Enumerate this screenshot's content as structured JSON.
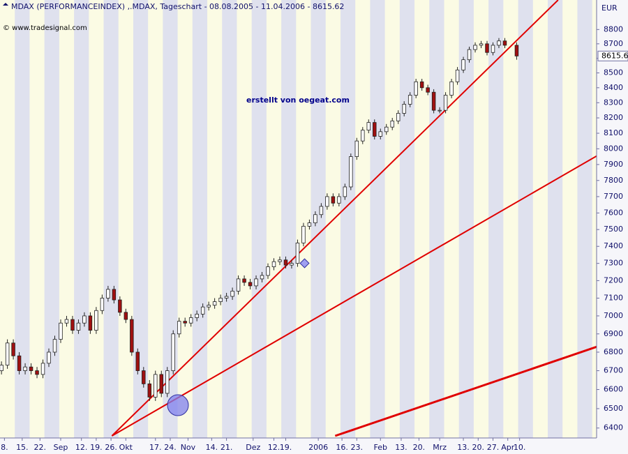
{
  "chart_data": {
    "type": "candlestick",
    "title": "MDAX (PERFORMANCEINDEX) ,.MDAX, Tageschart - 08.08.2005 - 11.04.2006 - 8615.62",
    "source": "© www.tradesignal.com",
    "annotation": "erstellt von oegeat.com",
    "y_unit": "EUR",
    "log_scale": true,
    "up_color": "#ffffff",
    "down_color": "#a01010",
    "x": [
      0,
      2,
      4,
      6,
      8,
      10,
      12,
      14,
      16,
      18,
      20,
      22,
      24,
      26,
      28,
      30,
      32,
      34,
      36,
      38,
      40,
      42,
      44,
      46,
      48,
      50,
      52,
      54,
      56,
      58,
      60,
      62,
      64,
      66,
      68,
      70,
      72,
      74,
      76,
      78,
      80,
      82,
      84,
      86,
      88,
      90,
      92,
      94,
      96,
      98,
      100,
      102,
      104,
      106,
      108,
      110,
      112,
      114,
      116,
      118,
      120,
      122,
      124,
      126,
      128,
      130,
      132,
      134,
      136,
      138,
      140,
      142,
      144,
      146,
      148,
      150,
      152,
      154,
      156,
      158,
      160,
      162,
      164,
      166,
      168,
      170,
      174
    ],
    "open": [
      6700,
      6730,
      6850,
      6780,
      6700,
      6720,
      6700,
      6680,
      6740,
      6800,
      6870,
      6960,
      6980,
      6920,
      6960,
      7000,
      6920,
      7030,
      7100,
      7150,
      7090,
      7020,
      6980,
      6800,
      6700,
      6630,
      6560,
      6680,
      6580,
      6700,
      6900,
      6970,
      6960,
      6990,
      7010,
      7050,
      7060,
      7080,
      7100,
      7110,
      7140,
      7210,
      7190,
      7170,
      7210,
      7230,
      7280,
      7310,
      7320,
      7290,
      7300,
      7420,
      7520,
      7540,
      7590,
      7640,
      7700,
      7660,
      7700,
      7760,
      7950,
      8050,
      8120,
      8170,
      8080,
      8110,
      8140,
      8180,
      8230,
      8290,
      8350,
      8440,
      8400,
      8370,
      8250,
      8250,
      8350,
      8440,
      8520,
      8590,
      8660,
      8690,
      8700,
      8640,
      8690,
      8720,
      8690
    ],
    "high": [
      6750,
      6870,
      6870,
      6800,
      6740,
      6740,
      6720,
      6760,
      6820,
      6890,
      6980,
      7000,
      7000,
      6980,
      7020,
      7020,
      7050,
      7120,
      7170,
      7170,
      7110,
      7040,
      7000,
      6820,
      6720,
      6650,
      6700,
      6700,
      6720,
      6920,
      6990,
      6990,
      7010,
      7030,
      7070,
      7080,
      7100,
      7120,
      7130,
      7160,
      7230,
      7230,
      7210,
      7230,
      7250,
      7300,
      7330,
      7340,
      7340,
      7320,
      7440,
      7540,
      7560,
      7610,
      7660,
      7720,
      7720,
      7720,
      7780,
      7970,
      8070,
      8140,
      8190,
      8190,
      8130,
      8160,
      8200,
      8250,
      8310,
      8370,
      8460,
      8460,
      8420,
      8390,
      8270,
      8370,
      8460,
      8540,
      8610,
      8680,
      8710,
      8720,
      8720,
      8710,
      8740,
      8740,
      8710
    ],
    "low": [
      6680,
      6710,
      6760,
      6680,
      6680,
      6680,
      6660,
      6660,
      6720,
      6780,
      6850,
      6940,
      6900,
      6900,
      6940,
      6900,
      6900,
      7010,
      7080,
      7070,
      7000,
      6960,
      6780,
      6680,
      6610,
      6540,
      6540,
      6560,
      6560,
      6680,
      6880,
      6940,
      6940,
      6970,
      6990,
      7030,
      7040,
      7060,
      7080,
      7090,
      7120,
      7170,
      7150,
      7150,
      7190,
      7210,
      7260,
      7290,
      7270,
      7270,
      7280,
      7400,
      7500,
      7520,
      7570,
      7620,
      7640,
      7640,
      7680,
      7740,
      7930,
      8030,
      8100,
      8060,
      8060,
      8090,
      8120,
      8160,
      8210,
      8270,
      8330,
      8380,
      8350,
      8230,
      8230,
      8230,
      8330,
      8420,
      8500,
      8570,
      8640,
      8670,
      8620,
      8620,
      8670,
      8670,
      8590
    ],
    "close": [
      6730,
      6850,
      6780,
      6700,
      6720,
      6700,
      6680,
      6740,
      6800,
      6870,
      6960,
      6980,
      6920,
      6960,
      7000,
      6920,
      7030,
      7100,
      7150,
      7090,
      7020,
      6980,
      6800,
      6700,
      6630,
      6560,
      6680,
      6580,
      6700,
      6900,
      6970,
      6960,
      6990,
      7010,
      7050,
      7060,
      7080,
      7100,
      7110,
      7140,
      7210,
      7190,
      7170,
      7210,
      7230,
      7280,
      7310,
      7320,
      7290,
      7300,
      7420,
      7520,
      7540,
      7590,
      7640,
      7700,
      7660,
      7700,
      7760,
      7950,
      8050,
      8120,
      8170,
      8080,
      8110,
      8140,
      8180,
      8230,
      8290,
      8350,
      8440,
      8400,
      8370,
      8250,
      8250,
      8350,
      8440,
      8520,
      8590,
      8660,
      8690,
      8700,
      8640,
      8690,
      8720,
      8690,
      8615.6
    ],
    "last_price": 8615.6,
    "trendlines": [
      {
        "color": "#e00000",
        "x": [
          37.3,
          188
        ],
        "y": [
          6360,
          9010
        ]
      },
      {
        "color": "#e00000",
        "x": [
          37.3,
          201
        ],
        "y": [
          6360,
          7954
        ]
      },
      {
        "color": "#e00000",
        "x": [
          112.7,
          201
        ],
        "y": [
          6360,
          6829
        ]
      }
    ],
    "xlim": [
      -0.5,
      201
    ],
    "xticks": [
      {
        "value": 1,
        "label": "8."
      },
      {
        "value": 7,
        "label": "15."
      },
      {
        "value": 13,
        "label": "22."
      },
      {
        "value": 20,
        "label": "Sep"
      },
      {
        "value": 27,
        "label": "12."
      },
      {
        "value": 32,
        "label": "19."
      },
      {
        "value": 37,
        "label": "26."
      },
      {
        "value": 42,
        "label": "Okt"
      },
      {
        "value": 52,
        "label": "17."
      },
      {
        "value": 57,
        "label": "24."
      },
      {
        "value": 63,
        "label": "Nov"
      },
      {
        "value": 71,
        "label": "14."
      },
      {
        "value": 76,
        "label": "21."
      },
      {
        "value": 85,
        "label": "Dez"
      },
      {
        "value": 92,
        "label": "12."
      },
      {
        "value": 96,
        "label": "19."
      },
      {
        "value": 107,
        "label": "2006"
      },
      {
        "value": 115,
        "label": "16."
      },
      {
        "value": 120,
        "label": "23."
      },
      {
        "value": 128,
        "label": "Feb"
      },
      {
        "value": 135,
        "label": "13."
      },
      {
        "value": 141,
        "label": "20."
      },
      {
        "value": 148,
        "label": "Mrz"
      },
      {
        "value": 156,
        "label": "13."
      },
      {
        "value": 161,
        "label": "20."
      },
      {
        "value": 166,
        "label": "27."
      },
      {
        "value": 171,
        "label": "Apr"
      },
      {
        "value": 175,
        "label": "10."
      }
    ],
    "ylim": [
      6360,
      9010
    ],
    "yticks": [
      6400,
      6500,
      6600,
      6700,
      6800,
      6900,
      7000,
      7100,
      7200,
      7300,
      7400,
      7500,
      7600,
      7700,
      7800,
      7900,
      8000,
      8100,
      8200,
      8300,
      8400,
      8500,
      8600,
      8700,
      8800
    ]
  }
}
